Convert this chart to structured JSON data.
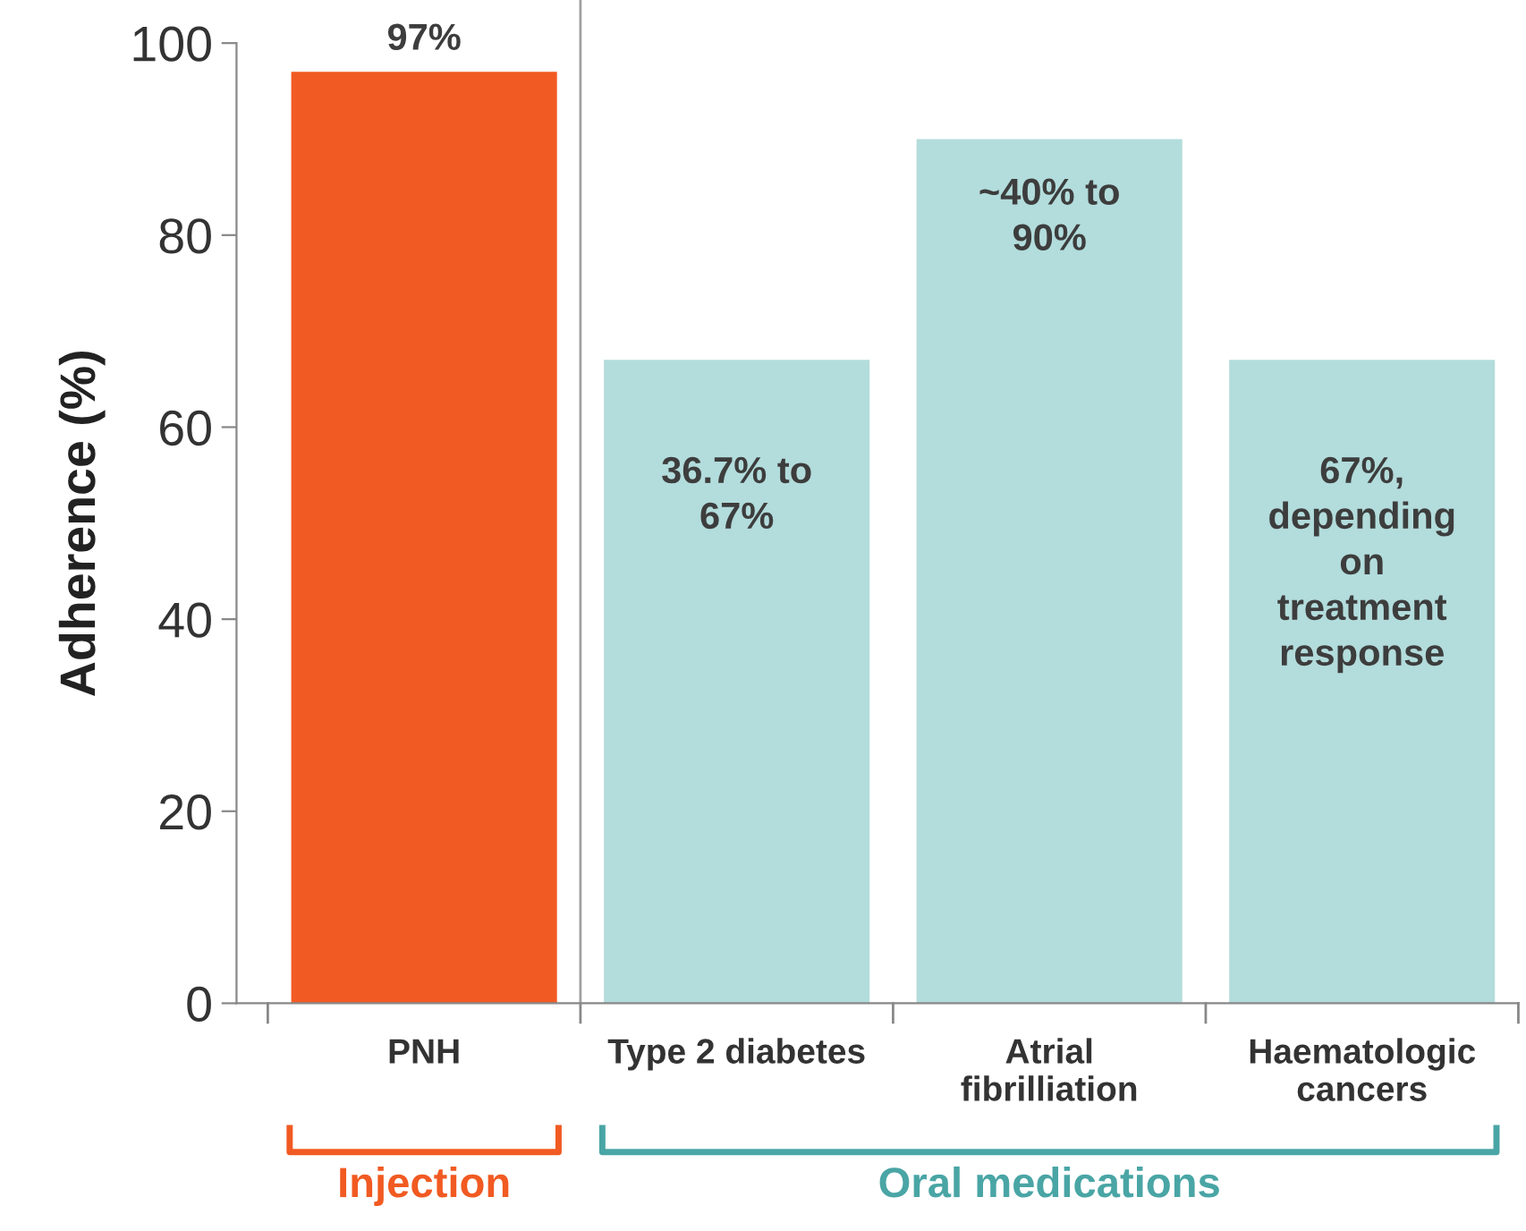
{
  "chart_data": {
    "type": "bar",
    "ylabel": "Adherence (%)",
    "categories": [
      "PNH",
      "Type 2 diabetes",
      "Atrial\nfibrilliation",
      "Haematologic\ncancers"
    ],
    "values": [
      97,
      67,
      90,
      67
    ],
    "colors": [
      "#f15a22",
      "#b3dcdc",
      "#b3dcdc",
      "#b3dcdc"
    ],
    "value_labels": [
      "97%",
      "36.7% to\n67%",
      "~40% to\n90%",
      "67%,\ndepending\non\ntreatment\nresponse"
    ],
    "ylim": [
      0,
      100
    ],
    "yticks": [
      0,
      20,
      40,
      60,
      80,
      100
    ],
    "annotations": [
      "Injection",
      "Oral medications"
    ],
    "grid": false
  }
}
